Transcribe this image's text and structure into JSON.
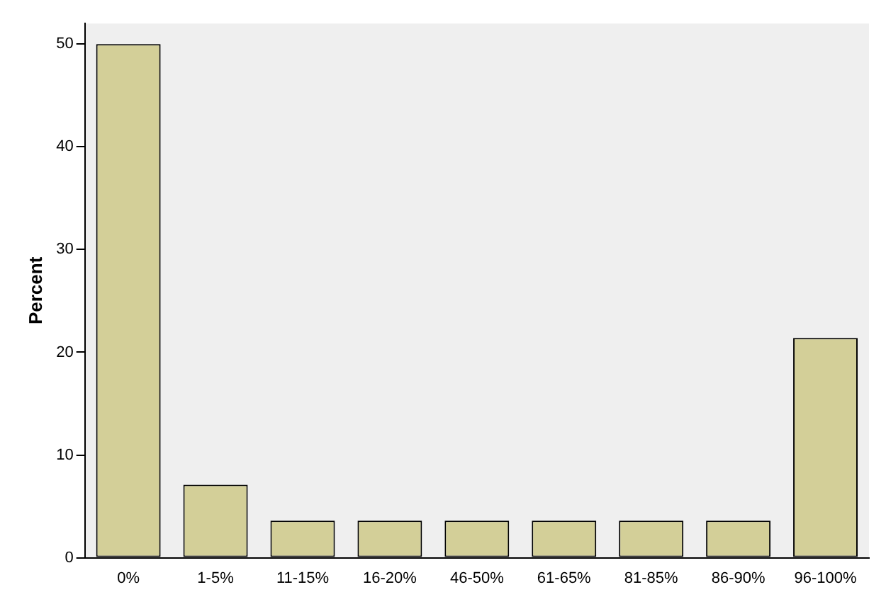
{
  "chart_data": {
    "type": "bar",
    "ylabel": "Percent",
    "categories": [
      "0%",
      "1-5%",
      "11-15%",
      "16-20%",
      "46-50%",
      "61-65%",
      "81-85%",
      "86-90%",
      "96-100%"
    ],
    "values": [
      50,
      7.1,
      3.6,
      3.6,
      3.6,
      3.6,
      3.6,
      3.6,
      21.4
    ],
    "color": "#d3cf98",
    "ylim": [
      0,
      52
    ],
    "yticks": [
      0,
      10,
      20,
      30,
      40,
      50
    ],
    "grid": false,
    "legend": false
  }
}
